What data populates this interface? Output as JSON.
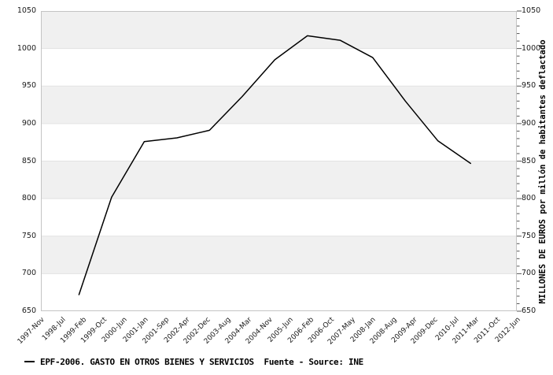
{
  "chart_data": {
    "type": "line",
    "title": "",
    "legend": {
      "marker": "line-dash",
      "text": "EPF-2006. GASTO EN OTROS BIENES Y SERVICIOS  Fuente - Source: INE"
    },
    "source": "Fuente - Source: INE",
    "y_axis": {
      "min": 650,
      "max": 1050,
      "major_step": 50,
      "minor_step": 10,
      "tick_labels": [
        "1050",
        "1000",
        "950",
        "900",
        "850",
        "800",
        "750",
        "700",
        "650"
      ],
      "shown_on": "both-sides"
    },
    "y_axis_right_title": "MILLONES DE EUROS por millón de habitantes deflactado",
    "x_axis": {
      "months_span": 175,
      "tick_labels": [
        "1997-Nov",
        "1998-Jul",
        "1999-Feb",
        "1999-Oct",
        "2000-Jun",
        "2001-Jan",
        "2001-Sep",
        "2002-Apr",
        "2002-Dec",
        "2003-Aug",
        "2004-Mar",
        "2004-Nov",
        "2005-Jun",
        "2006-Feb",
        "2006-Oct",
        "2007-May",
        "2008-Jan",
        "2008-Aug",
        "2009-Apr",
        "2009-Dec",
        "2010-Jul",
        "2011-Mar",
        "2011-Oct",
        "2012-Jun"
      ]
    },
    "series": [
      {
        "name": "EPF-2006. GASTO EN OTROS BIENES Y SERVICIOS",
        "points": [
          {
            "label": "1999",
            "month": 14,
            "value": 672
          },
          {
            "label": "2000",
            "month": 26,
            "value": 802
          },
          {
            "label": "2001",
            "month": 38,
            "value": 876
          },
          {
            "label": "2002",
            "month": 50,
            "value": 881
          },
          {
            "label": "2003",
            "month": 62,
            "value": 891
          },
          {
            "label": "2004",
            "month": 74,
            "value": 936
          },
          {
            "label": "2005",
            "month": 86,
            "value": 985
          },
          {
            "label": "2006",
            "month": 98,
            "value": 1017
          },
          {
            "label": "2007",
            "month": 110,
            "value": 1011
          },
          {
            "label": "2008",
            "month": 122,
            "value": 988
          },
          {
            "label": "2009",
            "month": 134,
            "value": 930
          },
          {
            "label": "2010",
            "month": 146,
            "value": 877
          },
          {
            "label": "2011",
            "month": 158,
            "value": 847
          }
        ]
      }
    ],
    "grid": "horizontal-major-with-alternating-bands",
    "legend_position": "bottom-left",
    "colors": {
      "line": "#000000",
      "band": "#f0f0f0",
      "gridline": "#e2e2e2",
      "border": "#c4c4c4",
      "tick": "#555555",
      "text": "#1a1a1a"
    }
  }
}
